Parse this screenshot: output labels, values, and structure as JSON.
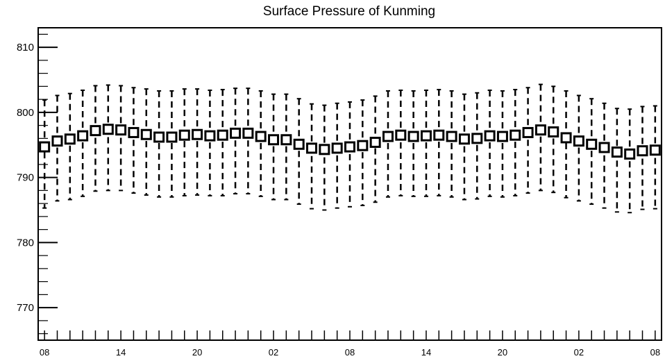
{
  "chart_data": {
    "type": "box",
    "title": "Surface Pressure of Kunming",
    "xlabel": "",
    "ylabel": "",
    "ylim": [
      765,
      813
    ],
    "xlim": [
      -0.5,
      48.5
    ],
    "yticks": [
      770,
      780,
      790,
      800,
      810
    ],
    "xtick_labels": [
      {
        "x": 0,
        "label": "08"
      },
      {
        "x": 6,
        "label": "14"
      },
      {
        "x": 12,
        "label": "20"
      },
      {
        "x": 18,
        "label": "02"
      },
      {
        "x": 24,
        "label": "08"
      },
      {
        "x": 30,
        "label": "14"
      },
      {
        "x": 36,
        "label": "20"
      },
      {
        "x": 42,
        "label": "02"
      },
      {
        "x": 48,
        "label": "08"
      }
    ],
    "time_step_hours": 1,
    "series": [
      {
        "median": [
          794.7,
          795.6,
          795.9,
          796.4,
          797.2,
          797.4,
          797.3,
          796.9,
          796.6,
          796.2,
          796.2,
          796.5,
          796.6,
          796.4,
          796.5,
          796.8,
          796.8,
          796.3,
          795.8,
          795.8,
          795.1,
          794.5,
          794.3,
          794.5,
          794.7,
          794.9,
          795.4,
          796.3,
          796.5,
          796.3,
          796.4,
          796.5,
          796.3,
          795.9,
          796.0,
          796.4,
          796.3,
          796.5,
          796.9,
          797.3,
          797.0,
          796.1,
          795.6,
          795.1,
          794.6,
          793.9,
          793.6,
          794.1,
          794.2
        ],
        "upper": [
          801.9,
          802.6,
          802.9,
          803.4,
          804.1,
          804.2,
          804.1,
          803.8,
          803.6,
          803.3,
          803.3,
          803.6,
          803.6,
          803.4,
          803.5,
          803.7,
          803.7,
          803.3,
          802.8,
          802.8,
          802.1,
          801.3,
          801.1,
          801.4,
          801.6,
          801.9,
          802.5,
          803.3,
          803.4,
          803.3,
          803.4,
          803.5,
          803.3,
          802.8,
          803.0,
          803.4,
          803.3,
          803.5,
          803.8,
          804.3,
          804.0,
          803.3,
          802.6,
          802.1,
          801.4,
          800.6,
          800.5,
          800.9,
          801.0
        ],
        "lower": [
          785.3,
          786.4,
          786.6,
          787.1,
          787.9,
          788.0,
          788.0,
          787.6,
          787.3,
          787.0,
          787.0,
          787.2,
          787.3,
          787.2,
          787.2,
          787.5,
          787.5,
          787.1,
          786.6,
          786.6,
          785.9,
          785.2,
          785.0,
          785.3,
          785.5,
          785.7,
          786.2,
          787.0,
          787.2,
          787.1,
          787.1,
          787.2,
          787.0,
          786.6,
          786.7,
          787.1,
          787.0,
          787.2,
          787.6,
          788.0,
          787.7,
          786.9,
          786.4,
          785.9,
          785.3,
          784.7,
          784.6,
          785.1,
          785.2
        ]
      }
    ],
    "grid": false,
    "legend": "none"
  }
}
